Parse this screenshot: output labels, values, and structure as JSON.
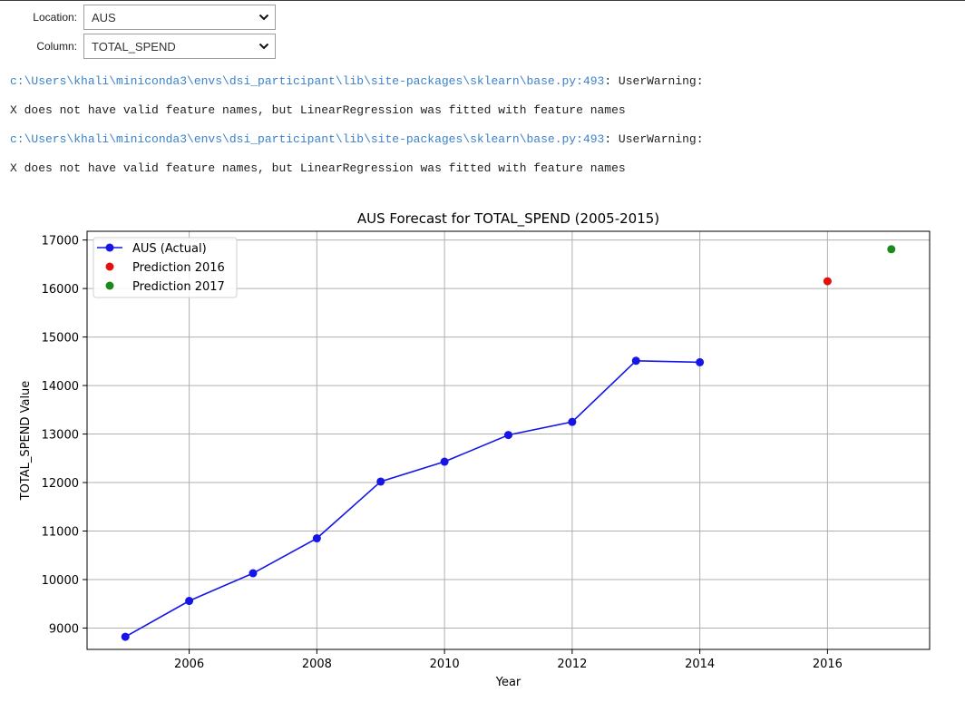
{
  "widgets": {
    "location": {
      "label": "Location:",
      "value": "AUS"
    },
    "column": {
      "label": "Column:",
      "value": "TOTAL_SPEND"
    }
  },
  "output": [
    {
      "path": "c:\\Users\\khali\\miniconda3\\envs\\dsi_participant\\lib\\site-packages\\sklearn\\base.py:493",
      "rest": ": UserWarning:"
    },
    {
      "text": "X does not have valid feature names, but LinearRegression was fitted with feature names"
    },
    {
      "path": "c:\\Users\\khali\\miniconda3\\envs\\dsi_participant\\lib\\site-packages\\sklearn\\base.py:493",
      "rest": ": UserWarning:"
    },
    {
      "text": "X does not have valid feature names, but LinearRegression was fitted with feature names"
    }
  ],
  "chart_data": {
    "type": "line",
    "title": "AUS Forecast for TOTAL_SPEND (2005-2015)",
    "xlabel": "Year",
    "ylabel": "TOTAL_SPEND Value",
    "xlim": [
      2004.4,
      2017.6
    ],
    "ylim": [
      8560,
      17180
    ],
    "xticks": [
      2006,
      2008,
      2010,
      2012,
      2014,
      2016
    ],
    "yticks": [
      9000,
      10000,
      11000,
      12000,
      13000,
      14000,
      15000,
      16000,
      17000
    ],
    "grid": true,
    "legend_position": "top-left",
    "series": [
      {
        "name": "AUS (Actual)",
        "kind": "line-marker",
        "color": "#1515e8",
        "x": [
          2005,
          2006,
          2007,
          2008,
          2009,
          2010,
          2011,
          2012,
          2013,
          2014
        ],
        "y": [
          8820,
          9560,
          10130,
          10850,
          12020,
          12430,
          12980,
          13250,
          14510,
          14480
        ]
      },
      {
        "name": "Prediction 2016",
        "kind": "point",
        "color": "#e31010",
        "x": [
          2016
        ],
        "y": [
          16150
        ]
      },
      {
        "name": "Prediction 2017",
        "kind": "point",
        "color": "#1b8a1b",
        "x": [
          2017
        ],
        "y": [
          16810
        ]
      }
    ]
  }
}
